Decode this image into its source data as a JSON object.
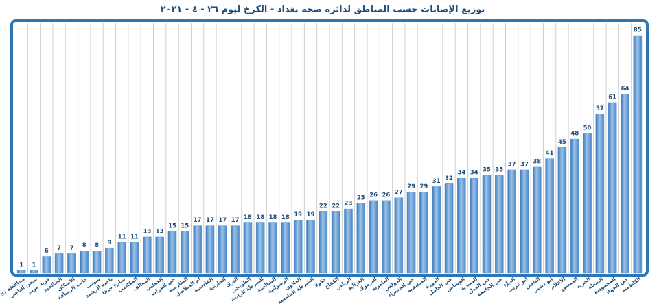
{
  "chart_data": {
    "type": "bar",
    "title": "توزيع الإصابات حسب المناطق لدائرة صحة بغداد - الكرخ ليوم ٢٦ - ٤ - ٢٠٢١",
    "categories": [
      "محافظة ذي قار",
      "سجن التاجي",
      "قرية مريم",
      "الصالحية",
      "الاسكان",
      "جانب الرصافة",
      "سويب",
      "ناحية الرشيد",
      "شارع حيفا",
      "المكاسب",
      "المعالف",
      "الخطيب",
      "حي الفرات",
      "الطارمية",
      "ام الصلاصل",
      "القادسية",
      "الحارثية",
      "الترك",
      "الطوبجي",
      "الشرطة الرابعة",
      "الشالجية",
      "الرضوانية",
      "العلاوي",
      "الشرطة الخامسة",
      "جكوك",
      "الكفاح",
      "الرياض",
      "الغزالية",
      "اليرموك",
      "العامرية",
      "الدولعي",
      "حي الخضراء",
      "العطيفية",
      "الدورة",
      "حي العامل",
      "الوشاش",
      "السيدية",
      "حي العدل",
      "حي الجامعة",
      "البياع",
      "ابو غريب",
      "التاجي",
      "ابو دشير",
      "الاعلام",
      "المنصور",
      "الحرية",
      "الشعلة",
      "المحمودية",
      "حي الجهاد",
      "الكاظمية"
    ],
    "values": [
      1,
      1,
      6,
      7,
      7,
      8,
      8,
      9,
      11,
      11,
      13,
      13,
      15,
      15,
      17,
      17,
      17,
      17,
      18,
      18,
      18,
      18,
      19,
      19,
      22,
      22,
      23,
      25,
      26,
      26,
      27,
      29,
      29,
      31,
      32,
      34,
      34,
      35,
      35,
      37,
      37,
      38,
      41,
      45,
      48,
      50,
      57,
      61,
      64,
      85
    ],
    "color": "#5b9bd5"
  }
}
